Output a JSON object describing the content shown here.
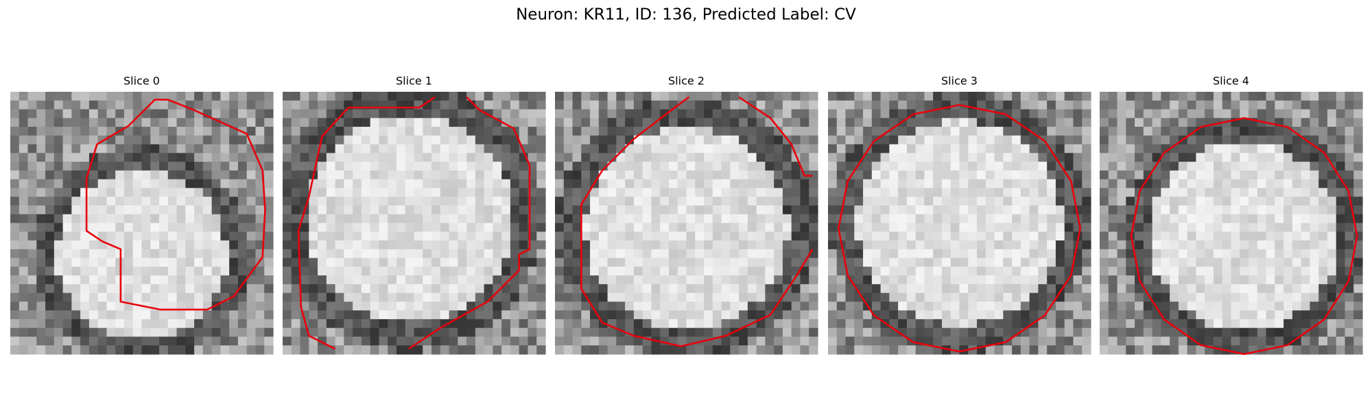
{
  "title": "Neuron: KR11, ID: 136, Predicted Label: CV",
  "panels": [
    {
      "title": "Slice 0"
    },
    {
      "title": "Slice 1"
    },
    {
      "title": "Slice 2"
    },
    {
      "title": "Slice 3"
    },
    {
      "title": "Slice 4"
    }
  ]
}
